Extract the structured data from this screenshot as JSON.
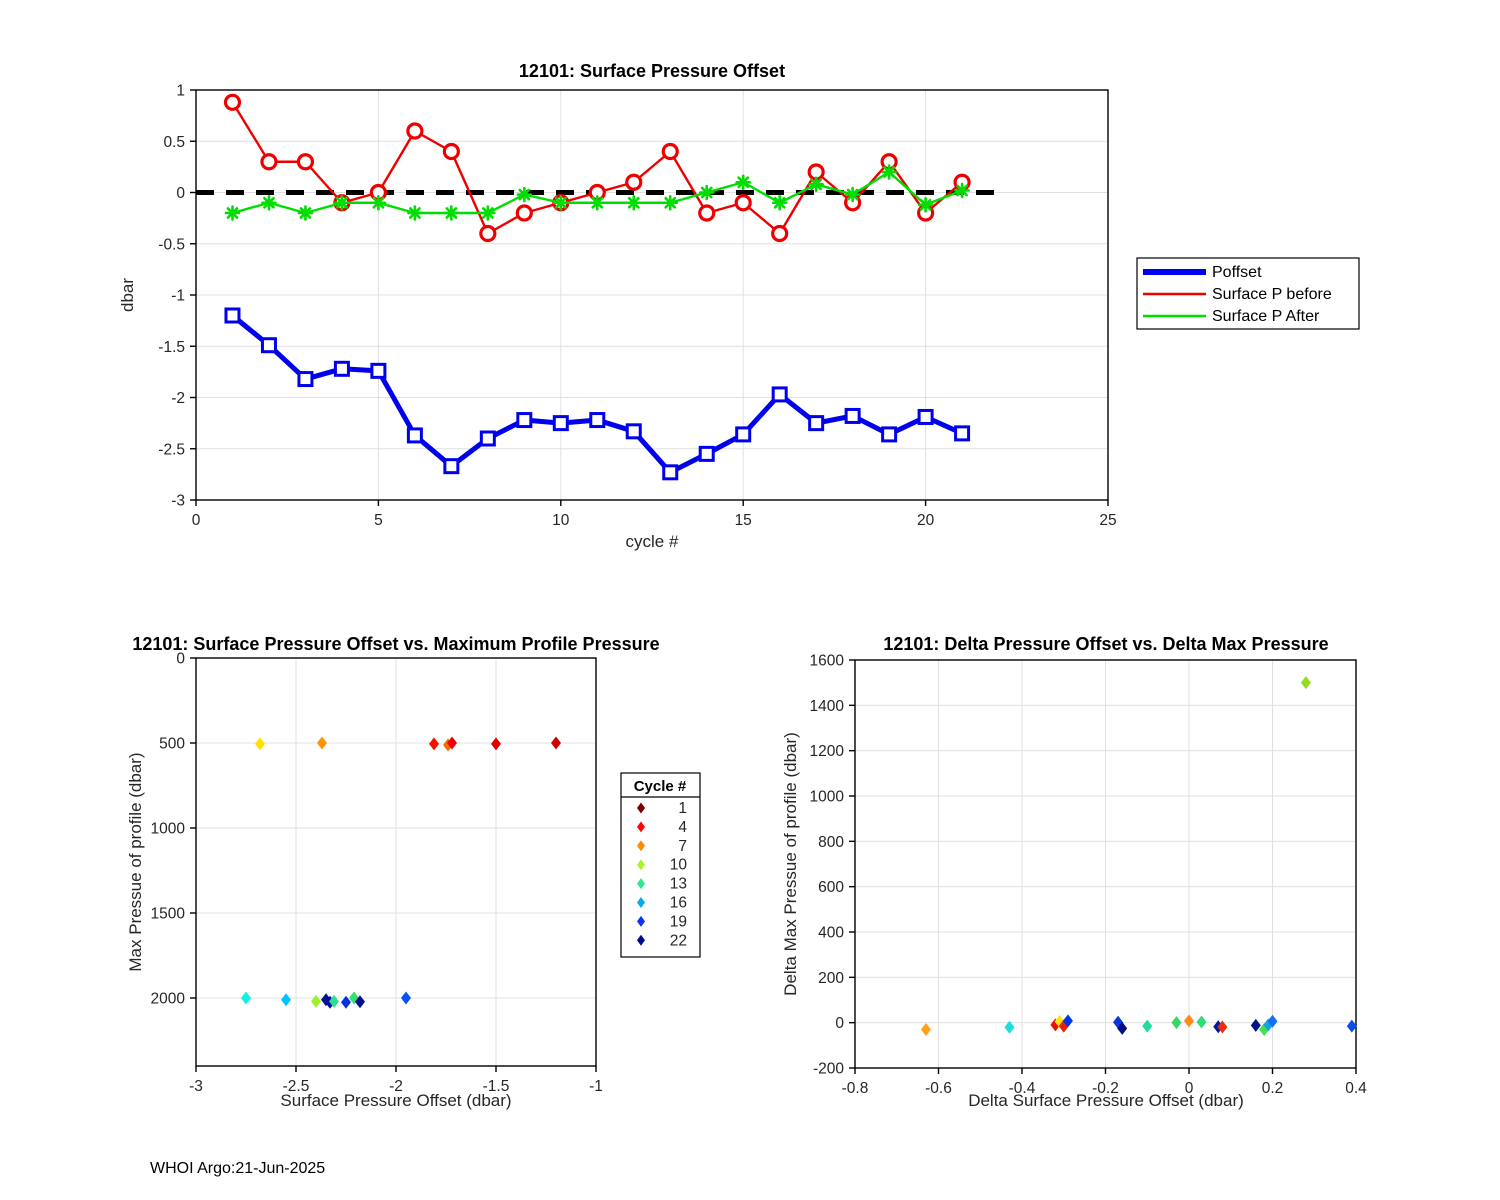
{
  "footer": {
    "text": "WHOI Argo:21-Jun-2025"
  },
  "chart_data": [
    {
      "id": "surface-pressure-offset",
      "type": "line",
      "title": "12101: Surface Pressure Offset",
      "xlabel": "cycle #",
      "ylabel": "dbar",
      "xlim": [
        0,
        25
      ],
      "ylim": [
        -3,
        1
      ],
      "xticks": [
        0,
        5,
        10,
        15,
        20,
        25
      ],
      "yticks": [
        1,
        0.5,
        0,
        -0.5,
        -1,
        -1.5,
        -2,
        -2.5,
        -3
      ],
      "grid": true,
      "zero_line": {
        "x_start": 0,
        "x_end": 22,
        "style": "dashed",
        "color": "#000000"
      },
      "legend_position": "right-outside",
      "x": [
        1,
        2,
        3,
        4,
        5,
        6,
        7,
        8,
        9,
        10,
        11,
        12,
        13,
        14,
        15,
        16,
        17,
        18,
        19,
        20,
        21
      ],
      "series": [
        {
          "name": "Poffset",
          "color": "#0000EE",
          "width": 5,
          "marker": "square",
          "values": [
            -1.2,
            -1.49,
            -1.82,
            -1.72,
            -1.74,
            -2.37,
            -2.67,
            -2.4,
            -2.22,
            -2.25,
            -2.22,
            -2.33,
            -2.73,
            -2.55,
            -2.36,
            -1.97,
            -2.25,
            -2.18,
            -2.36,
            -2.19,
            -2.35
          ]
        },
        {
          "name": "Surface P before",
          "color": "#EE0000",
          "width": 2.4,
          "marker": "circle",
          "values": [
            0.88,
            0.3,
            0.3,
            -0.1,
            0.0,
            0.6,
            0.4,
            -0.4,
            -0.2,
            -0.1,
            0.0,
            0.1,
            0.4,
            -0.2,
            -0.1,
            -0.4,
            0.2,
            -0.1,
            0.3,
            -0.2,
            0.1
          ]
        },
        {
          "name": "Surface P After",
          "color": "#00DD00",
          "width": 2.4,
          "marker": "asterisk",
          "values": [
            -0.2,
            -0.1,
            -0.2,
            -0.1,
            -0.1,
            -0.2,
            -0.2,
            -0.2,
            -0.02,
            -0.1,
            -0.1,
            -0.1,
            -0.1,
            0.0,
            0.1,
            -0.1,
            0.08,
            -0.02,
            0.2,
            -0.12,
            0.02
          ]
        }
      ]
    },
    {
      "id": "offset-vs-max-pressure",
      "type": "scatter",
      "title": "12101: Surface Pressure Offset vs. Maximum Profile Pressure",
      "xlabel": "Surface Pressure Offset (dbar)",
      "ylabel": "Max Pressue of profile (dbar)",
      "xlim": [
        -3,
        -1
      ],
      "ylim": [
        0,
        2400
      ],
      "y_inverted": true,
      "xticks": [
        -3,
        -2.5,
        -2,
        -1.5,
        -1
      ],
      "yticks": [
        0,
        500,
        1000,
        1500,
        2000
      ],
      "grid": true,
      "legend": {
        "title": "Cycle #",
        "entries": [
          {
            "label": "1",
            "color": "#7A0000"
          },
          {
            "label": "4",
            "color": "#F50A0A"
          },
          {
            "label": "7",
            "color": "#FF8A00"
          },
          {
            "label": "10",
            "color": "#A8F22E"
          },
          {
            "label": "13",
            "color": "#2EE88C"
          },
          {
            "label": "16",
            "color": "#0AAAE8"
          },
          {
            "label": "19",
            "color": "#0A32F5"
          },
          {
            "label": "22",
            "color": "#000A8C"
          }
        ]
      },
      "points": [
        {
          "x": -2.68,
          "y": 505,
          "color": "#FFE100"
        },
        {
          "x": -2.37,
          "y": 500,
          "color": "#FF9400"
        },
        {
          "x": -1.81,
          "y": 505,
          "color": "#F50F00"
        },
        {
          "x": -1.74,
          "y": 512,
          "color": "#FF6A00"
        },
        {
          "x": -1.72,
          "y": 500,
          "color": "#EE0000"
        },
        {
          "x": -1.5,
          "y": 505,
          "color": "#E80000"
        },
        {
          "x": -1.2,
          "y": 500,
          "color": "#D00000"
        },
        {
          "x": -2.75,
          "y": 2000,
          "color": "#0FF0E0"
        },
        {
          "x": -2.55,
          "y": 2010,
          "color": "#00C3FF"
        },
        {
          "x": -2.4,
          "y": 2020,
          "color": "#9FEF30"
        },
        {
          "x": -2.35,
          "y": 2010,
          "color": "#001489"
        },
        {
          "x": -2.33,
          "y": 2025,
          "color": "#0A0AA0"
        },
        {
          "x": -2.31,
          "y": 2020,
          "color": "#2EE08C"
        },
        {
          "x": -2.25,
          "y": 2025,
          "color": "#0033E0"
        },
        {
          "x": -2.21,
          "y": 2000,
          "color": "#30E070"
        },
        {
          "x": -2.18,
          "y": 2022,
          "color": "#000F8F"
        },
        {
          "x": -1.95,
          "y": 2000,
          "color": "#0853F0"
        }
      ]
    },
    {
      "id": "delta-offset-vs-delta-max-pressure",
      "type": "scatter",
      "title": "12101: Delta Pressure Offset vs. Delta Max Pressure",
      "xlabel": "Delta Surface Pressure Offset (dbar)",
      "ylabel": "Delta Max Pressue of profile (dbar)",
      "xlim": [
        -0.8,
        0.4
      ],
      "ylim": [
        -200,
        1600
      ],
      "xticks": [
        -0.8,
        -0.6,
        -0.4,
        -0.2,
        0,
        0.2,
        0.4
      ],
      "yticks": [
        -200,
        0,
        200,
        400,
        600,
        800,
        1000,
        1200,
        1400,
        1600
      ],
      "grid": true,
      "points": [
        {
          "x": 0.28,
          "y": 1500,
          "color": "#97DB20"
        },
        {
          "x": -0.63,
          "y": -30,
          "color": "#FFA019"
        },
        {
          "x": -0.43,
          "y": -20,
          "color": "#16E0E0"
        },
        {
          "x": -0.32,
          "y": -10,
          "color": "#EE1100"
        },
        {
          "x": -0.31,
          "y": 5,
          "color": "#FFE112"
        },
        {
          "x": -0.3,
          "y": -15,
          "color": "#E82200"
        },
        {
          "x": -0.29,
          "y": 8,
          "color": "#0036E8"
        },
        {
          "x": -0.17,
          "y": 2,
          "color": "#0A35D8"
        },
        {
          "x": -0.16,
          "y": -25,
          "color": "#001080"
        },
        {
          "x": -0.1,
          "y": -15,
          "color": "#1FDC9E"
        },
        {
          "x": -0.03,
          "y": 0,
          "color": "#37D762"
        },
        {
          "x": 0.0,
          "y": 8,
          "color": "#FF8C1A"
        },
        {
          "x": 0.03,
          "y": 3,
          "color": "#2EDC78"
        },
        {
          "x": 0.07,
          "y": -18,
          "color": "#0017A8"
        },
        {
          "x": 0.08,
          "y": -19,
          "color": "#E83010"
        },
        {
          "x": 0.16,
          "y": -12,
          "color": "#001489"
        },
        {
          "x": 0.18,
          "y": -30,
          "color": "#46DF4E"
        },
        {
          "x": 0.19,
          "y": -10,
          "color": "#12A3E8"
        },
        {
          "x": 0.2,
          "y": 6,
          "color": "#1470F2"
        },
        {
          "x": 0.39,
          "y": -15,
          "color": "#0A50E8"
        }
      ]
    }
  ]
}
